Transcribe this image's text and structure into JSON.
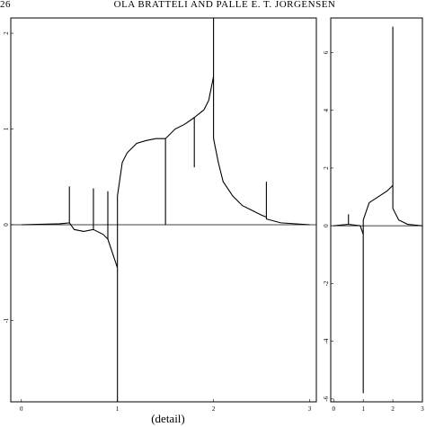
{
  "header": {
    "page_number": "26",
    "running_head": "OLA BRATTELI AND PALLE E. T. JORGENSEN"
  },
  "caption": "(detail)",
  "chart_data": [
    {
      "type": "line",
      "color": "#000000",
      "zero_line": true,
      "x": [
        0,
        0.4,
        0.5,
        0.5,
        0.5,
        0.55,
        0.65,
        0.75,
        0.75,
        0.75,
        0.85,
        0.9,
        0.9,
        0.9,
        0.95,
        1.0,
        1.0,
        1.0,
        1.05,
        1.1,
        1.2,
        1.3,
        1.4,
        1.5,
        1.5,
        1.5,
        1.6,
        1.7,
        1.8,
        1.8,
        1.8,
        1.9,
        1.95,
        2.0,
        2.0,
        2.0,
        2.05,
        2.1,
        2.2,
        2.3,
        2.4,
        2.5,
        2.55,
        2.55,
        2.55,
        2.7,
        3.0
      ],
      "values": [
        0,
        0.01,
        0.02,
        0.4,
        0.02,
        -0.05,
        -0.07,
        -0.05,
        0.38,
        -0.05,
        -0.1,
        -0.15,
        0.35,
        -0.15,
        -0.3,
        -0.45,
        -1.85,
        0.3,
        0.65,
        0.75,
        0.85,
        0.88,
        0.9,
        0.9,
        0.0,
        0.9,
        1.0,
        1.05,
        1.12,
        0.6,
        1.12,
        1.2,
        1.3,
        1.55,
        2.16,
        0.9,
        0.65,
        0.45,
        0.3,
        0.2,
        0.15,
        0.1,
        0.08,
        0.45,
        0.06,
        0.02,
        0
      ],
      "xlim": [
        -0.11,
        3.07
      ],
      "ylim": [
        -1.85,
        2.16
      ],
      "xticks": [
        0,
        1,
        2,
        3
      ],
      "yticks": [
        -1,
        0,
        1,
        2
      ]
    },
    {
      "type": "line",
      "color": "#000000",
      "zero_line": true,
      "x": [
        0,
        0.5,
        0.5,
        0.5,
        0.9,
        1.0,
        1.0,
        1.0,
        1.2,
        1.5,
        1.8,
        2.0,
        2.0,
        2.0,
        2.2,
        2.5,
        3.0
      ],
      "values": [
        0,
        0.05,
        0.4,
        0.05,
        0,
        -0.3,
        -5.8,
        0.2,
        0.8,
        1.0,
        1.2,
        1.4,
        6.9,
        0.6,
        0.2,
        0.05,
        0
      ],
      "xlim": [
        -0.1,
        3.0
      ],
      "ylim": [
        -6.1,
        7.2
      ],
      "xticks": [
        0,
        1,
        2,
        3
      ],
      "yticks": [
        -6,
        -4,
        -2,
        0,
        2,
        4,
        6
      ]
    }
  ]
}
